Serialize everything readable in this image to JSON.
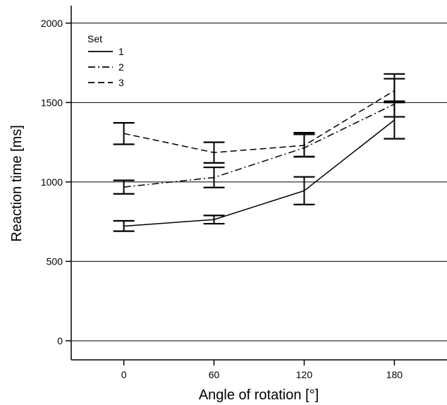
{
  "chart_data": {
    "type": "line",
    "title": "",
    "xlabel": "Angle of rotation [°]",
    "ylabel": "Reaction time [ms]",
    "x": [
      0,
      60,
      120,
      180
    ],
    "x_tick_labels": [
      "0",
      "60",
      "120",
      "180"
    ],
    "xlim": [
      -35,
      215
    ],
    "ylim": [
      -120,
      2110
    ],
    "y_ticks": [
      0,
      500,
      1000,
      1500,
      2000
    ],
    "y_tick_labels": [
      "0",
      "500",
      "1000",
      "1500",
      "2000"
    ],
    "grid": "horizontal",
    "legend": {
      "title": "Set",
      "position": "top-left"
    },
    "series": [
      {
        "name": "1",
        "dash": "solid",
        "values": [
          722,
          763,
          945,
          1390
        ],
        "err_low": [
          690,
          737,
          858,
          1272
        ],
        "err_high": [
          755,
          789,
          1032,
          1508
        ]
      },
      {
        "name": "2",
        "dash": "dashdot",
        "values": [
          968,
          1028,
          1215,
          1490
        ],
        "err_low": [
          925,
          965,
          1158,
          1410
        ],
        "err_high": [
          1010,
          1092,
          1300,
          1650
        ]
      },
      {
        "name": "3",
        "dash": "dashed",
        "values": [
          1305,
          1185,
          1230,
          1575
        ],
        "err_low": [
          1237,
          1120,
          1160,
          1500
        ],
        "err_high": [
          1372,
          1250,
          1310,
          1680
        ]
      }
    ]
  }
}
